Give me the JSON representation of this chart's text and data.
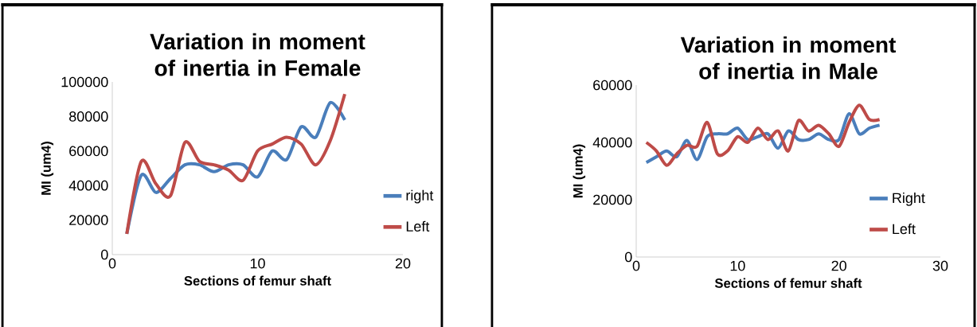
{
  "chart_data": [
    {
      "type": "line",
      "title": "Variation in moment of inertia in Female",
      "xlabel": "Sections of femur shaft",
      "ylabel": "MI (um4)",
      "x": [
        1,
        2,
        3,
        4,
        5,
        6,
        7,
        8,
        9,
        10,
        11,
        12,
        13,
        14,
        15,
        16
      ],
      "series": [
        {
          "name": "right",
          "color": "#4a7ebb",
          "values": [
            12000,
            46000,
            36000,
            44000,
            52000,
            52000,
            48000,
            52000,
            52000,
            45000,
            60000,
            55000,
            74000,
            68000,
            88000,
            78000
          ]
        },
        {
          "name": "Left",
          "color": "#be4b48",
          "values": [
            12000,
            54000,
            41000,
            34000,
            65000,
            54000,
            52000,
            49000,
            43000,
            60000,
            64000,
            68000,
            64000,
            52000,
            66000,
            93000
          ]
        }
      ],
      "xlim": [
        0,
        20
      ],
      "ylim": [
        0,
        100000
      ],
      "xticks": [
        0,
        10,
        20
      ],
      "yticks": [
        0,
        20000,
        40000,
        60000,
        80000,
        100000
      ],
      "legend": "right"
    },
    {
      "type": "line",
      "title": "Variation in moment of inertia in Male",
      "xlabel": "Sections of femur shaft",
      "ylabel": "MI (um4)",
      "x": [
        1,
        2,
        3,
        4,
        5,
        6,
        7,
        8,
        9,
        10,
        11,
        12,
        13,
        14,
        15,
        16,
        17,
        18,
        19,
        20,
        21,
        22,
        23,
        24
      ],
      "series": [
        {
          "name": "Right",
          "color": "#4a7ebb",
          "values": [
            33000,
            35000,
            37000,
            35000,
            40700,
            34000,
            42000,
            43000,
            43000,
            45000,
            41000,
            42000,
            43000,
            38000,
            44000,
            41000,
            41000,
            43000,
            41000,
            41000,
            50000,
            43000,
            45000,
            46000
          ]
        },
        {
          "name": "Left",
          "color": "#be4b48",
          "values": [
            40000,
            37000,
            32000,
            36000,
            39000,
            38600,
            47000,
            36000,
            37000,
            42000,
            40000,
            45000,
            41000,
            44000,
            37000,
            47600,
            44000,
            46000,
            43000,
            38600,
            47000,
            53000,
            48000,
            48000
          ]
        }
      ],
      "xlim": [
        0,
        30
      ],
      "ylim": [
        0,
        60000
      ],
      "xticks": [
        0,
        10,
        20,
        30
      ],
      "yticks": [
        0,
        20000,
        40000,
        60000
      ],
      "legend": "right"
    }
  ]
}
